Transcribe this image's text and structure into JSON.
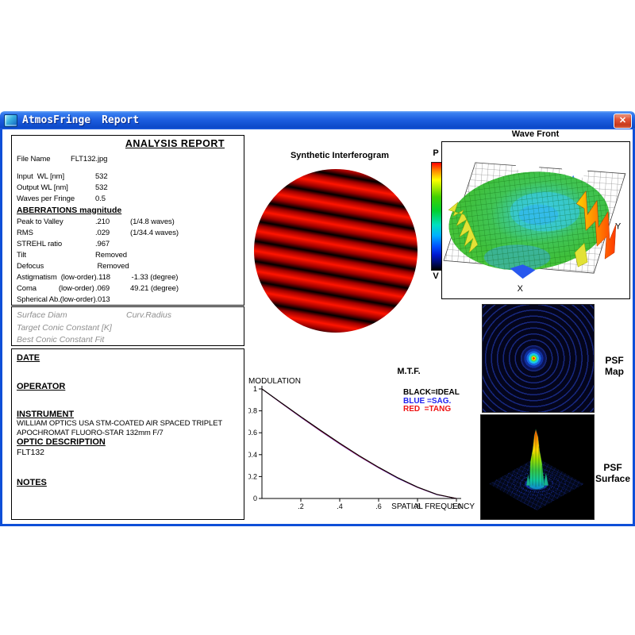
{
  "window": {
    "app_name": "AtmosFringe",
    "doc_name": "Report",
    "close_glyph": "✕"
  },
  "report": {
    "title": "ANALYSIS  REPORT",
    "file_row": {
      "label": "File Name",
      "value": "FLT132.jpg"
    },
    "param_rows": [
      {
        "label": "Input  WL [nm]",
        "value": "532"
      },
      {
        "label": "Output WL [nm]",
        "value": "532"
      },
      {
        "label": "Waves per Fringe",
        "value": "0.5"
      }
    ],
    "aberrations_heading": "ABERRATIONS magnitude",
    "aberration_rows": [
      {
        "label": "Peak to Valley",
        "value": ".210",
        "extra": "(1/4.8 waves)"
      },
      {
        "label": "RMS",
        "value": ".029",
        "extra": "(1/34.4 waves)"
      },
      {
        "label": "STREHL ratio",
        "value": ".967",
        "extra": ""
      },
      {
        "label": "Tilt",
        "value": "Removed",
        "extra": ""
      },
      {
        "label": "Defocus",
        "value": " Removed",
        "extra": ""
      },
      {
        "label": "Astigmatism  (low-order)",
        "value": ".118",
        "extra": "-1.33 (degree)"
      },
      {
        "label": "Coma           (low-order)",
        "value": ".069",
        "extra": "49.21 (degree)"
      },
      {
        "label": "Spherical Ab.(low-order)",
        "value": ".013",
        "extra": ""
      }
    ],
    "conic_box": {
      "line1_left": "Surface Diam",
      "line1_right": "Curv.Radius",
      "line2": "Target Conic Constant [K]",
      "line3": "Best Conic Constant Fit"
    },
    "meta": {
      "date_label": "DATE",
      "operator_label": "OPERATOR",
      "instrument_label": "INSTRUMENT",
      "instrument_line1": "WILLIAM OPTICS USA STM-COATED AIR SPACED TRIPLET",
      "instrument_line2": "APOCHROMAT FLUORO-STAR 132mm F/7",
      "optic_label": "OPTIC DESCRIPTION",
      "optic_value": "FLT132",
      "notes_label": "NOTES"
    }
  },
  "interferogram": {
    "title": "Synthetic Interferogram"
  },
  "wavefront": {
    "title": "Wave Front",
    "colorbar_top": "P",
    "colorbar_bottom": "V",
    "x_label": "X",
    "y_label": "Y"
  },
  "psf_map": {
    "line1": "PSF",
    "line2": "Map"
  },
  "psf_surface": {
    "line1": "PSF",
    "line2": "Surface"
  },
  "chart_data": {
    "type": "line",
    "title": "M.T.F.",
    "xlabel": "SPATIAL FREQUENCY",
    "ylabel": "MODULATION",
    "xlim": [
      0,
      1.0
    ],
    "ylim": [
      0,
      1
    ],
    "grid": false,
    "legend_position": "top-right",
    "x": [
      0,
      0.1,
      0.2,
      0.3,
      0.4,
      0.5,
      0.6,
      0.7,
      0.8,
      0.9,
      1.0
    ],
    "x_ticks": [
      {
        "v": 0.2,
        "label": ".2"
      },
      {
        "v": 0.4,
        "label": ".4"
      },
      {
        "v": 0.6,
        "label": ".6"
      },
      {
        "v": 0.8,
        "label": ".8"
      },
      {
        "v": 1.0,
        "label": "1.0"
      }
    ],
    "y_ticks": [
      {
        "v": 0,
        "label": "0"
      },
      {
        "v": 0.2,
        "label": "0.2"
      },
      {
        "v": 0.4,
        "label": "0.4"
      },
      {
        "v": 0.6,
        "label": "0.6"
      },
      {
        "v": 0.8,
        "label": "0.8"
      },
      {
        "v": 1,
        "label": "1"
      }
    ],
    "series": [
      {
        "name": "IDEAL",
        "legend": "BLACK=IDEAL",
        "color": "#000000",
        "values": [
          1.0,
          0.873,
          0.747,
          0.624,
          0.505,
          0.391,
          0.285,
          0.188,
          0.104,
          0.037,
          0.0
        ]
      },
      {
        "name": "SAG",
        "legend": "BLUE =SAG.",
        "color": "#2222ee",
        "values": [
          1.0,
          0.869,
          0.741,
          0.617,
          0.498,
          0.384,
          0.279,
          0.183,
          0.1,
          0.034,
          0.0
        ]
      },
      {
        "name": "TANG",
        "legend": "RED  =TANG",
        "color": "#ee1111",
        "values": [
          1.0,
          0.871,
          0.744,
          0.62,
          0.501,
          0.387,
          0.282,
          0.186,
          0.102,
          0.036,
          0.0
        ]
      }
    ]
  }
}
